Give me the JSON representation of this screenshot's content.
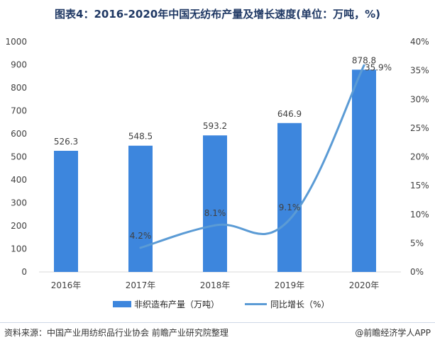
{
  "title": "图表4：2016-2020年中国无纺布产量及增长速度(单位：万吨，%)",
  "source": "资料来源：中国产业用纺织品行业协会 前瞻产业研究院整理",
  "credit": "@前瞻经济学人APP",
  "colors": {
    "bar": "#3d86dd",
    "line": "#5b9bd5",
    "title": "#1f3864"
  },
  "chart_data": {
    "type": "bar",
    "categories": [
      "2016年",
      "2017年",
      "2018年",
      "2019年",
      "2020年"
    ],
    "series": [
      {
        "name": "非织造布产量（万吨）",
        "axis": "left",
        "kind": "bar",
        "values": [
          526.3,
          548.5,
          593.2,
          646.9,
          878.8
        ],
        "labels": [
          "526.3",
          "548.5",
          "593.2",
          "646.9",
          "878.8"
        ]
      },
      {
        "name": "同比增长（%）",
        "axis": "right",
        "kind": "line",
        "values": [
          null,
          4.2,
          8.1,
          9.1,
          35.9
        ],
        "labels": [
          "",
          "4.2%",
          "8.1%",
          "9.1%",
          "35.9%"
        ]
      }
    ],
    "ylim_left": [
      0,
      1000
    ],
    "yticks_left": [
      "0",
      "100",
      "200",
      "300",
      "400",
      "500",
      "600",
      "700",
      "800",
      "900",
      "1000"
    ],
    "ylim_right": [
      0,
      40
    ],
    "yticks_right": [
      "0%",
      "5%",
      "10%",
      "15%",
      "20%",
      "25%",
      "30%",
      "35%",
      "40%"
    ],
    "grid": false,
    "legend_position": "bottom"
  }
}
